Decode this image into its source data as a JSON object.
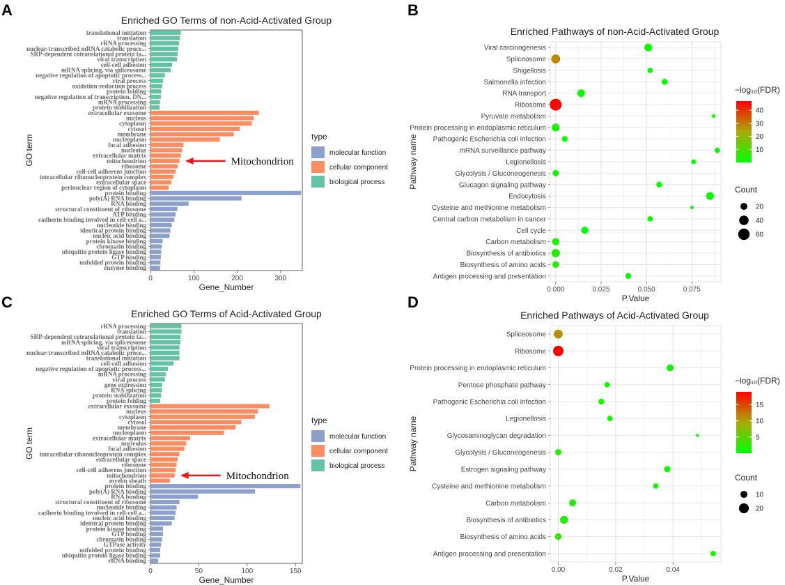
{
  "panels": {
    "A": "A",
    "B": "B",
    "C": "C",
    "D": "D"
  },
  "colors": {
    "molecular function": "#8DA0CB",
    "cellular component": "#FC8D62",
    "biological process": "#66C2A5",
    "arrow": "#E31A1C",
    "fdr_low": "#00FF00",
    "fdr_high": "#FF0000"
  },
  "go_legend": {
    "title": "type",
    "items": [
      "molecular function",
      "cellular component",
      "biological process"
    ]
  },
  "annotation": "Mitochondrion",
  "fdr_legend_title": "−log₁₀(FDR)",
  "count_legend_title": "Count",
  "chart_data": [
    {
      "id": "A",
      "type": "bar",
      "orientation": "horizontal",
      "title": "Enriched GO Terms of non-Acid-Activated Group",
      "xlabel": "Gene_Number",
      "ylabel": "GO term",
      "xlim": [
        0,
        350
      ],
      "xticks": [
        0,
        100,
        200,
        300
      ],
      "annotate_term": "mitochondrion",
      "categories": [
        {
          "term": "translational initiation",
          "value": 70,
          "type": "biological process"
        },
        {
          "term": "translation",
          "value": 68,
          "type": "biological process"
        },
        {
          "term": "rRNA processing",
          "value": 66,
          "type": "biological process"
        },
        {
          "term": "nuclear-transcribed mRNA catabolic proce...",
          "value": 64,
          "type": "biological process"
        },
        {
          "term": "SRP-dependent cotranslational protein ta...",
          "value": 63,
          "type": "biological process"
        },
        {
          "term": "viral transcription",
          "value": 61,
          "type": "biological process"
        },
        {
          "term": "cell-cell adhesion",
          "value": 50,
          "type": "biological process"
        },
        {
          "term": "mRNA splicing, via spliceosome",
          "value": 47,
          "type": "biological process"
        },
        {
          "term": "negative regulation of apoptotic process...",
          "value": 33,
          "type": "biological process"
        },
        {
          "term": "viral process",
          "value": 29,
          "type": "biological process"
        },
        {
          "term": "oxidation-reduction process",
          "value": 27,
          "type": "biological process"
        },
        {
          "term": "protein folding",
          "value": 25,
          "type": "biological process"
        },
        {
          "term": "negative regulation of transcription, DN...",
          "value": 24,
          "type": "biological process"
        },
        {
          "term": "mRNA processing",
          "value": 22,
          "type": "biological process"
        },
        {
          "term": "protein stabilization",
          "value": 21,
          "type": "biological process"
        },
        {
          "term": "extracellular exosome",
          "value": 250,
          "type": "cellular component"
        },
        {
          "term": "nucleus",
          "value": 238,
          "type": "cellular component"
        },
        {
          "term": "cytoplasm",
          "value": 234,
          "type": "cellular component"
        },
        {
          "term": "cytosol",
          "value": 206,
          "type": "cellular component"
        },
        {
          "term": "membrane",
          "value": 192,
          "type": "cellular component"
        },
        {
          "term": "nucleoplasm",
          "value": 160,
          "type": "cellular component"
        },
        {
          "term": "focal adhesion",
          "value": 76,
          "type": "cellular component"
        },
        {
          "term": "nucleolus",
          "value": 73,
          "type": "cellular component"
        },
        {
          "term": "extracellular matrix",
          "value": 70,
          "type": "cellular component"
        },
        {
          "term": "mitochondrion",
          "value": 67,
          "type": "cellular component"
        },
        {
          "term": "ribosome",
          "value": 63,
          "type": "cellular component"
        },
        {
          "term": "cell-cell adherens junction",
          "value": 58,
          "type": "cellular component"
        },
        {
          "term": "intracellular ribonucleoprotein complex",
          "value": 53,
          "type": "cellular component"
        },
        {
          "term": "extracellular space",
          "value": 48,
          "type": "cellular component"
        },
        {
          "term": "perinuclear region of cytoplasm",
          "value": 42,
          "type": "cellular component"
        },
        {
          "term": "protein binding",
          "value": 347,
          "type": "molecular function"
        },
        {
          "term": "poly(A) RNA binding",
          "value": 210,
          "type": "molecular function"
        },
        {
          "term": "RNA binding",
          "value": 88,
          "type": "molecular function"
        },
        {
          "term": "structural constituent of ribosome",
          "value": 62,
          "type": "molecular function"
        },
        {
          "term": "ATP binding",
          "value": 58,
          "type": "molecular function"
        },
        {
          "term": "cadherin binding involved in cell-cell a...",
          "value": 55,
          "type": "molecular function"
        },
        {
          "term": "nucleotide binding",
          "value": 49,
          "type": "molecular function"
        },
        {
          "term": "identical protein binding",
          "value": 46,
          "type": "molecular function"
        },
        {
          "term": "nucleic acid binding",
          "value": 44,
          "type": "molecular function"
        },
        {
          "term": "protein kinase binding",
          "value": 28,
          "type": "molecular function"
        },
        {
          "term": "chromatin binding",
          "value": 26,
          "type": "molecular function"
        },
        {
          "term": "ubiquitin protein ligase binding",
          "value": 25,
          "type": "molecular function"
        },
        {
          "term": "GTP binding",
          "value": 24,
          "type": "molecular function"
        },
        {
          "term": "unfolded protein binding",
          "value": 23,
          "type": "molecular function"
        },
        {
          "term": "enzyme binding",
          "value": 22,
          "type": "molecular function"
        }
      ]
    },
    {
      "id": "B",
      "type": "scatter",
      "title": "Enriched Pathways of non-Acid-Activated Group",
      "xlabel": "P.Value",
      "ylabel": "Pathway name",
      "xlim": [
        -0.003,
        0.091
      ],
      "xticks": [
        "0.000",
        "0.025",
        "0.050",
        "0.075"
      ],
      "fdr_range": [
        0,
        47
      ],
      "fdr_ticks": [
        10,
        20,
        30,
        40
      ],
      "count_breaks": [
        20,
        40,
        60
      ],
      "count_range": [
        1,
        70
      ],
      "points": [
        {
          "pathway": "Viral carcinogenesis",
          "p": 0.051,
          "count": 26,
          "fdr": 2
        },
        {
          "pathway": "Spliceosome",
          "p": 0.0,
          "count": 35,
          "fdr": 28
        },
        {
          "pathway": "Shigellosis",
          "p": 0.052,
          "count": 11,
          "fdr": 1
        },
        {
          "pathway": "Salmonella infection",
          "p": 0.06,
          "count": 14,
          "fdr": 1
        },
        {
          "pathway": "RNA transport",
          "p": 0.014,
          "count": 24,
          "fdr": 1
        },
        {
          "pathway": "Ribosome",
          "p": 0.0,
          "count": 65,
          "fdr": 46
        },
        {
          "pathway": "Pyruvate metabolism",
          "p": 0.087,
          "count": 4,
          "fdr": 1
        },
        {
          "pathway": "Protein processing in endoplasmic reticulum",
          "p": 0.0,
          "count": 26,
          "fdr": 4
        },
        {
          "pathway": "Pathogenic Escherichia coli infection",
          "p": 0.005,
          "count": 13,
          "fdr": 2
        },
        {
          "pathway": "mRNA surveillance pathway",
          "p": 0.089,
          "count": 11,
          "fdr": 1
        },
        {
          "pathway": "Legionellosis",
          "p": 0.076,
          "count": 9,
          "fdr": 1
        },
        {
          "pathway": "Glycolysis / Gluconeogenesis",
          "p": 0.0,
          "count": 16,
          "fdr": 3
        },
        {
          "pathway": "Glucagon signaling pathway",
          "p": 0.057,
          "count": 13,
          "fdr": 1
        },
        {
          "pathway": "Endocytosis",
          "p": 0.085,
          "count": 26,
          "fdr": 1
        },
        {
          "pathway": "Cysteine and methionine metabolism",
          "p": 0.075,
          "count": 4,
          "fdr": 1
        },
        {
          "pathway": "Central carbon metabolism in cancer",
          "p": 0.052,
          "count": 11,
          "fdr": 1
        },
        {
          "pathway": "Cell cycle",
          "p": 0.016,
          "count": 21,
          "fdr": 1
        },
        {
          "pathway": "Carbon metabolism",
          "p": 0.0,
          "count": 22,
          "fdr": 4
        },
        {
          "pathway": "Biosynthesis of antibiotics",
          "p": 0.0,
          "count": 30,
          "fdr": 5
        },
        {
          "pathway": "Biosynthesis of amino acids",
          "p": 0.0,
          "count": 18,
          "fdr": 4
        },
        {
          "pathway": "Antigen processing and presentation",
          "p": 0.04,
          "count": 13,
          "fdr": 1
        }
      ]
    },
    {
      "id": "C",
      "type": "bar",
      "orientation": "horizontal",
      "title": "Enriched GO Terms of Acid-Activated Group",
      "xlabel": "Gene_Number",
      "ylabel": "GO term",
      "xlim": [
        0,
        157
      ],
      "xticks": [
        0,
        50,
        100,
        150
      ],
      "annotate_term": "mitochondrion",
      "categories": [
        {
          "term": "rRNA processing",
          "value": 32,
          "type": "biological process"
        },
        {
          "term": "translation",
          "value": 32,
          "type": "biological process"
        },
        {
          "term": "SRP-dependent cotranslational protein ta...",
          "value": 31,
          "type": "biological process"
        },
        {
          "term": "mRNA splicing, via spliceosome",
          "value": 31,
          "type": "biological process"
        },
        {
          "term": "viral transcription",
          "value": 30,
          "type": "biological process"
        },
        {
          "term": "nuclear-transcribed mRNA catabolic proce...",
          "value": 30,
          "type": "biological process"
        },
        {
          "term": "translational initiation",
          "value": 30,
          "type": "biological process"
        },
        {
          "term": "cell-cell adhesion",
          "value": 24,
          "type": "biological process"
        },
        {
          "term": "negative regulation of apoptotic process...",
          "value": 18,
          "type": "biological process"
        },
        {
          "term": "mRNA processing",
          "value": 16,
          "type": "biological process"
        },
        {
          "term": "viral process",
          "value": 15,
          "type": "biological process"
        },
        {
          "term": "gene expression",
          "value": 12,
          "type": "biological process"
        },
        {
          "term": "RNA splicing",
          "value": 12,
          "type": "biological process"
        },
        {
          "term": "protein stabilization",
          "value": 11,
          "type": "biological process"
        },
        {
          "term": "protein folding",
          "value": 10,
          "type": "biological process"
        },
        {
          "term": "extracellular exosome",
          "value": 123,
          "type": "cellular component"
        },
        {
          "term": "nucleus",
          "value": 111,
          "type": "cellular component"
        },
        {
          "term": "cytoplasm",
          "value": 108,
          "type": "cellular component"
        },
        {
          "term": "cytosol",
          "value": 94,
          "type": "cellular component"
        },
        {
          "term": "membrane",
          "value": 88,
          "type": "cellular component"
        },
        {
          "term": "nucleoplasm",
          "value": 76,
          "type": "cellular component"
        },
        {
          "term": "extracellular matrix",
          "value": 41,
          "type": "cellular component"
        },
        {
          "term": "nucleolus",
          "value": 37,
          "type": "cellular component"
        },
        {
          "term": "focal adhesion",
          "value": 35,
          "type": "cellular component"
        },
        {
          "term": "intracellular ribonucleoprotein complex",
          "value": 30,
          "type": "cellular component"
        },
        {
          "term": "extracellular space",
          "value": 28,
          "type": "cellular component"
        },
        {
          "term": "ribosome",
          "value": 27,
          "type": "cellular component"
        },
        {
          "term": "cell-cell adherens junction",
          "value": 26,
          "type": "cellular component"
        },
        {
          "term": "mitochondrion",
          "value": 25,
          "type": "cellular component"
        },
        {
          "term": "myelin sheath",
          "value": 20,
          "type": "cellular component"
        },
        {
          "term": "protein binding",
          "value": 155,
          "type": "molecular function"
        },
        {
          "term": "poly(A) RNA binding",
          "value": 108,
          "type": "molecular function"
        },
        {
          "term": "RNA binding",
          "value": 49,
          "type": "molecular function"
        },
        {
          "term": "structural constituent of ribosome",
          "value": 30,
          "type": "molecular function"
        },
        {
          "term": "nucleotide binding",
          "value": 27,
          "type": "molecular function"
        },
        {
          "term": "cadherin binding involved in cell-cell a...",
          "value": 26,
          "type": "molecular function"
        },
        {
          "term": "nucleic acid binding",
          "value": 25,
          "type": "molecular function"
        },
        {
          "term": "identical protein binding",
          "value": 22,
          "type": "molecular function"
        },
        {
          "term": "protein kinase binding",
          "value": 13,
          "type": "molecular function"
        },
        {
          "term": "GTP binding",
          "value": 13,
          "type": "molecular function"
        },
        {
          "term": "chromatin binding",
          "value": 12,
          "type": "molecular function"
        },
        {
          "term": "GTPase activity",
          "value": 11,
          "type": "molecular function"
        },
        {
          "term": "unfolded protein binding",
          "value": 10,
          "type": "molecular function"
        },
        {
          "term": "ubiquitin protein ligase binding",
          "value": 10,
          "type": "molecular function"
        },
        {
          "term": "rRNA binding",
          "value": 8,
          "type": "molecular function"
        }
      ]
    },
    {
      "id": "D",
      "type": "scatter",
      "title": "Enriched Pathways of Acid-Activated Group",
      "xlabel": "P.Value",
      "ylabel": "Pathway name",
      "xlim": [
        -0.0028,
        0.0567
      ],
      "xticks": [
        "0.00",
        "0.02",
        "0.04"
      ],
      "fdr_range": [
        0,
        19
      ],
      "fdr_ticks": [
        5,
        10,
        15
      ],
      "count_breaks": [
        10,
        20
      ],
      "count_range": [
        1,
        24
      ],
      "points": [
        {
          "pathway": "Spliceosome",
          "p": 0.0,
          "count": 16,
          "fdr": 11
        },
        {
          "pathway": "Ribosome",
          "p": 0.0,
          "count": 22,
          "fdr": 19
        },
        {
          "pathway": "Protein processing in endoplasmic reticulum",
          "p": 0.039,
          "count": 10,
          "fdr": 1
        },
        {
          "pathway": "Pentose phosphate pathway",
          "p": 0.017,
          "count": 6,
          "fdr": 1
        },
        {
          "pathway": "Pathogenic Escherichia coli infection",
          "p": 0.015,
          "count": 7,
          "fdr": 1
        },
        {
          "pathway": "Legionellosis",
          "p": 0.018,
          "count": 6,
          "fdr": 1
        },
        {
          "pathway": "Glycosaminoglycan degradation",
          "p": 0.0485,
          "count": 2,
          "fdr": 1
        },
        {
          "pathway": "Glycolysis / Gluconeogenesis",
          "p": 0.0,
          "count": 8,
          "fdr": 2
        },
        {
          "pathway": "Estrogen signaling pathway",
          "p": 0.038,
          "count": 8,
          "fdr": 1
        },
        {
          "pathway": "Cysteine and methionine metabolism",
          "p": 0.034,
          "count": 6,
          "fdr": 1
        },
        {
          "pathway": "Carbon metabolism",
          "p": 0.005,
          "count": 10,
          "fdr": 2
        },
        {
          "pathway": "Biosynthesis of antibiotics",
          "p": 0.002,
          "count": 13,
          "fdr": 2
        },
        {
          "pathway": "Biosynthesis of amino acids",
          "p": 0.0,
          "count": 9,
          "fdr": 3
        },
        {
          "pathway": "Antigen processing and presentation",
          "p": 0.054,
          "count": 6,
          "fdr": 1
        }
      ]
    }
  ]
}
